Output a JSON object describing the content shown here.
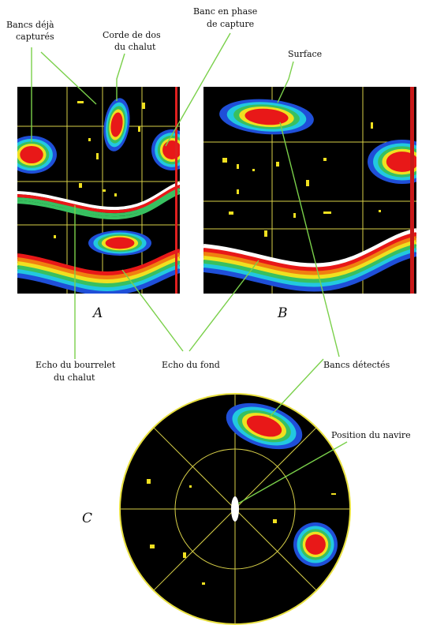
{
  "labels": {
    "bancs_captures": [
      "Bancs déjà",
      "capturés"
    ],
    "corde_de_dos": [
      "Corde de dos",
      "du chalut"
    ],
    "banc_en_phase": [
      "Banc en phase",
      "de capture"
    ],
    "surface": "Surface",
    "panel_a": "A",
    "panel_b": "B",
    "echo_bourrelet": [
      "Echo du bourrelet",
      "du chalut"
    ],
    "echo_fond": "Echo du fond",
    "bancs_detectes": "Bancs détectés",
    "position_navire": "Position du navire",
    "panel_c": "C"
  }
}
